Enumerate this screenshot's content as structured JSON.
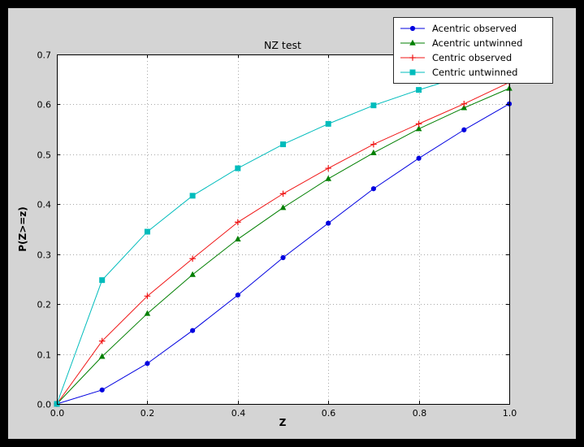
{
  "chart_data": {
    "type": "line",
    "title": "NZ test",
    "xlabel": "Z",
    "ylabel": "P(Z>=z)",
    "xlim": [
      0.0,
      1.0
    ],
    "ylim": [
      0.0,
      0.7
    ],
    "xticks": [
      0.0,
      0.2,
      0.4,
      0.6,
      0.8,
      1.0
    ],
    "yticks": [
      0.0,
      0.1,
      0.2,
      0.3,
      0.4,
      0.5,
      0.6,
      0.7
    ],
    "grid": true,
    "grid_style": "dotted",
    "legend_position": "upper right, overlapping top-right of axes",
    "x": [
      0.0,
      0.1,
      0.2,
      0.3,
      0.4,
      0.5,
      0.6,
      0.7,
      0.8,
      0.9,
      1.0
    ],
    "series": [
      {
        "name": "Acentric observed",
        "color": "#0000e0",
        "marker": "circle",
        "values": [
          0.0,
          0.028,
          0.081,
          0.147,
          0.218,
          0.293,
          0.362,
          0.431,
          0.492,
          0.549,
          0.601
        ]
      },
      {
        "name": "Acentric untwinned",
        "color": "#007f00",
        "marker": "triangle-up",
        "values": [
          0.0,
          0.095,
          0.181,
          0.259,
          0.33,
          0.393,
          0.451,
          0.503,
          0.551,
          0.593,
          0.632
        ]
      },
      {
        "name": "Centric observed",
        "color": "#f01414",
        "marker": "plus",
        "values": [
          0.0,
          0.126,
          0.216,
          0.291,
          0.364,
          0.421,
          0.472,
          0.52,
          0.561,
          0.601,
          0.644
        ]
      },
      {
        "name": "Centric untwinned",
        "color": "#00bcbc",
        "marker": "square",
        "values": [
          0.0,
          0.248,
          0.345,
          0.417,
          0.472,
          0.52,
          0.561,
          0.598,
          0.629,
          0.657,
          0.683
        ]
      }
    ],
    "colors": {
      "outer_bg": "#000000",
      "figure_bg": "#d4d4d4",
      "plot_bg": "#ffffff",
      "grid": "#a8a8a8",
      "frame": "#000000",
      "tick_label": "#000000"
    }
  }
}
